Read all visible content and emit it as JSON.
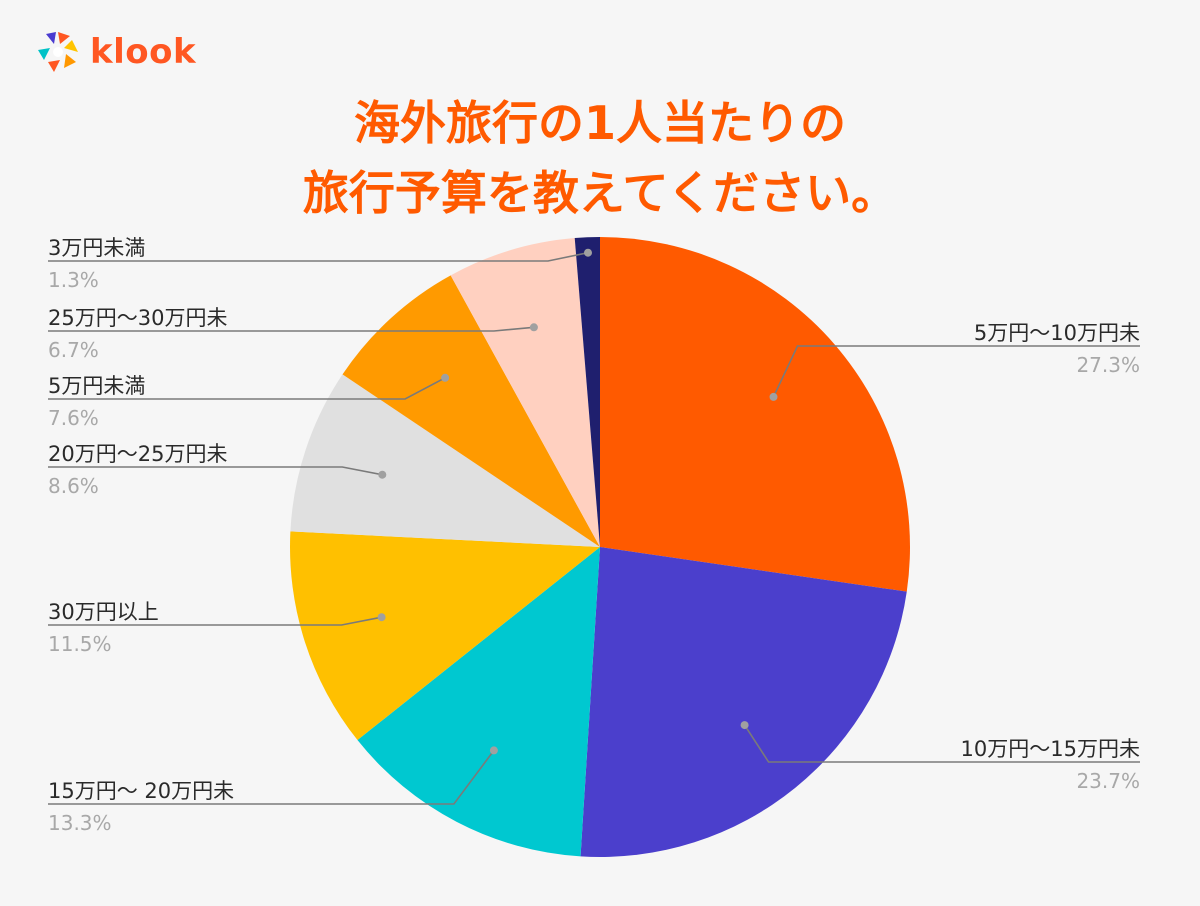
{
  "brand": {
    "name": "klook",
    "colors": {
      "primary": "#ff5722",
      "blue": "#4a3bd0",
      "yellow": "#ffc400",
      "teal": "#00c2c7",
      "orange": "#ff9800"
    }
  },
  "title_lines": [
    "海外旅行の1人当たりの",
    "旅行予算を教えてください。"
  ],
  "chart_data": {
    "type": "pie",
    "title": "海外旅行の1人当たりの旅行予算を教えてください。",
    "start_angle_deg": 0,
    "direction": "clockwise",
    "slices": [
      {
        "label": "5万円～10万円未",
        "value": 27.3,
        "display": "27.3%",
        "color": "#ff5a00",
        "side": "right"
      },
      {
        "label": "10万円～15万円未",
        "value": 23.7,
        "display": "23.7%",
        "color": "#4b3fcc",
        "side": "right"
      },
      {
        "label": "15万円～ 20万円未",
        "value": 13.3,
        "display": "13.3%",
        "color": "#00c8d0",
        "side": "left"
      },
      {
        "label": "30万円以上",
        "value": 11.5,
        "display": "11.5%",
        "color": "#ffc000",
        "side": "left"
      },
      {
        "label": "20万円～25万円未",
        "value": 8.6,
        "display": "8.6%",
        "color": "#e0e0e0",
        "side": "left"
      },
      {
        "label": "5万円未満",
        "value": 7.6,
        "display": "7.6%",
        "color": "#ff9a00",
        "side": "left"
      },
      {
        "label": "25万円～30万円未",
        "value": 6.7,
        "display": "6.7%",
        "color": "#ffd0c0",
        "side": "left"
      },
      {
        "label": "3万円未満",
        "value": 1.3,
        "display": "1.3%",
        "color": "#1f1f6e",
        "side": "left"
      }
    ]
  }
}
